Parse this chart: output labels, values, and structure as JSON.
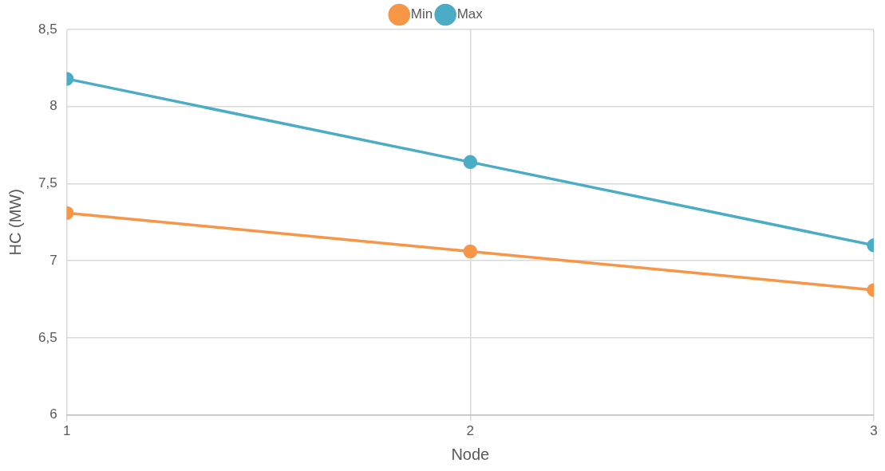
{
  "chart_data": {
    "type": "line",
    "xlabel": "Node",
    "ylabel": "HC (MW)",
    "x": [
      1,
      2,
      3
    ],
    "series": [
      {
        "name": "Min",
        "color": "#f79646",
        "values": [
          7.31,
          7.06,
          6.81
        ]
      },
      {
        "name": "Max",
        "color": "#4bacc6",
        "values": [
          8.18,
          7.64,
          7.1
        ]
      }
    ],
    "xlim": [
      1,
      3
    ],
    "xticks": [
      1,
      2,
      3
    ],
    "ylim": [
      6,
      8.5
    ],
    "yticks": [
      6,
      {
        "value": 6.5,
        "label": "6,5"
      },
      7,
      {
        "value": 7.5,
        "label": "7,5"
      },
      8,
      {
        "value": 8.5,
        "label": "8,5"
      }
    ],
    "grid": true,
    "legend": "top",
    "marker": "circle",
    "line_style": "solid"
  }
}
